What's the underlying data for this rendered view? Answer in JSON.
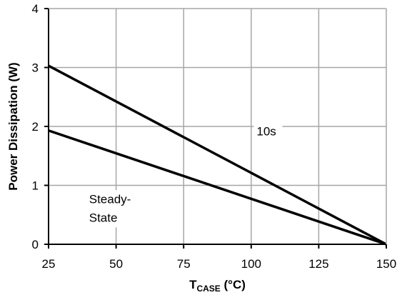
{
  "chart_data": {
    "type": "line",
    "title": "",
    "xlabel": "T",
    "xlabel_sub": "CASE",
    "xlabel_unit": " (°C)",
    "ylabel": "Power Dissipation (W)",
    "xlim": [
      25,
      150
    ],
    "ylim": [
      0,
      4
    ],
    "xticks": [
      25,
      50,
      75,
      100,
      125,
      150
    ],
    "yticks": [
      0,
      1,
      2,
      3,
      4
    ],
    "grid": true,
    "legend": "none",
    "series": [
      {
        "x": [
          25,
          150
        ],
        "y": [
          3.03,
          0
        ],
        "color": "#000000"
      },
      {
        "x": [
          25,
          150
        ],
        "y": [
          1.93,
          0
        ],
        "color": "#000000"
      }
    ],
    "annotations": [
      {
        "lines": [
          "10s"
        ],
        "x": 102,
        "y": 1.85
      },
      {
        "lines": [
          "Steady-",
          "State"
        ],
        "x": 40,
        "y": 0.7
      }
    ],
    "colors": {
      "grid": "#a6a6a6",
      "frame": "#000000",
      "line": "#000000",
      "background": "#ffffff"
    }
  }
}
